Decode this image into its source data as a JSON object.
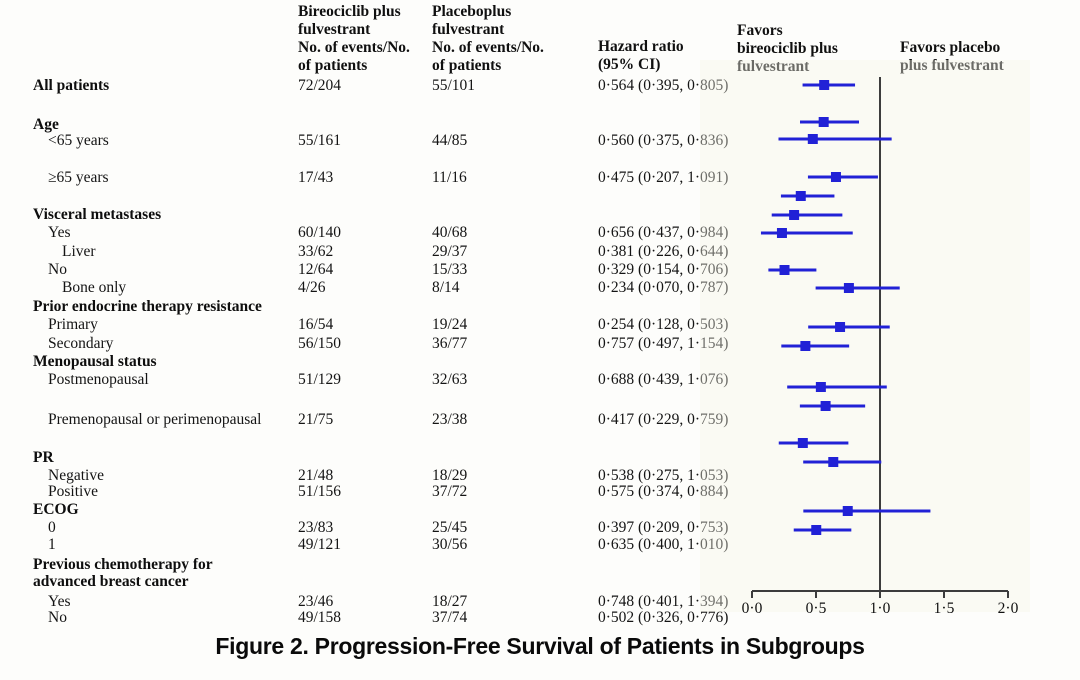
{
  "figure_caption": "Figure 2. Progression-Free Survival of Patients in Subgroups",
  "columns": {
    "bireociclib_header": "Bireociclib plus\nfulvestrant\nNo. of events/No.\nof patients",
    "placebo_header": "Placeboplus\nfulvestrant\nNo. of events/No.\nof patients",
    "hazard_header": "Hazard ratio\n(95% CI)",
    "favors_left": "Favors\nbireociclib  plus\nfulvestrant",
    "favors_right": "Favors placebo\nplus fulvestrant"
  },
  "colors": {
    "marker_blue": "#2121d6",
    "axis_gray": "#3c3c3c",
    "text_black": "#111111"
  },
  "chart_data": {
    "type": "scatter",
    "variant": "forest-plot",
    "title": "Figure 2. Progression-Free Survival of Patients in Subgroups",
    "xlabel": "Hazard ratio (95% CI)",
    "xlim": [
      0.0,
      2.0
    ],
    "x_ticks": [
      0.0,
      0.5,
      1.0,
      1.5,
      2.0
    ],
    "x_tick_labels": [
      "0·0",
      "0·5",
      "1·0",
      "1·5",
      "2·0"
    ],
    "reference_line_x": 1.0,
    "legend_left": "Favors bireociclib plus fulvestrant",
    "legend_right": "Favors placebo plus fulvestrant",
    "rows": [
      {
        "label": "All patients",
        "indent": 0,
        "bold": true,
        "events_bireociclib": "72/204",
        "events_placebo": "55/101",
        "hr_text": "0·564 (0·395, 0·805)",
        "hr": 0.564,
        "ci_low": 0.395,
        "ci_high": 0.805
      },
      {
        "label": "Age",
        "indent": 0,
        "bold": true
      },
      {
        "label": "<65 years",
        "indent": 1,
        "events_bireociclib": "55/161",
        "events_placebo": "44/85",
        "hr_text": "0·560 (0·375, 0·836)",
        "hr": 0.56,
        "ci_low": 0.375,
        "ci_high": 0.836
      },
      {
        "label": "≥65 years",
        "indent": 1,
        "events_bireociclib": "17/43",
        "events_placebo": "11/16",
        "hr_text": "0·475 (0·207, 1·091)",
        "hr": 0.475,
        "ci_low": 0.207,
        "ci_high": 1.091
      },
      {
        "label": "Visceral metastases",
        "indent": 0,
        "bold": true
      },
      {
        "label": "Yes",
        "indent": 1,
        "events_bireociclib": "60/140",
        "events_placebo": "40/68",
        "hr_text": "0·656 (0·437, 0·984)",
        "hr": 0.656,
        "ci_low": 0.437,
        "ci_high": 0.984
      },
      {
        "label": "Liver",
        "indent": 2,
        "events_bireociclib": "33/62",
        "events_placebo": "29/37",
        "hr_text": "0·381 (0·226, 0·644)",
        "hr": 0.381,
        "ci_low": 0.226,
        "ci_high": 0.644
      },
      {
        "label": "No",
        "indent": 1,
        "events_bireociclib": "12/64",
        "events_placebo": "15/33",
        "hr_text": "0·329 (0·154, 0·706)",
        "hr": 0.329,
        "ci_low": 0.154,
        "ci_high": 0.706
      },
      {
        "label": "Bone only",
        "indent": 2,
        "events_bireociclib": "4/26",
        "events_placebo": "8/14",
        "hr_text": "0·234 (0·070, 0·787)",
        "hr": 0.234,
        "ci_low": 0.07,
        "ci_high": 0.787
      },
      {
        "label": "Prior endocrine therapy resistance",
        "indent": 0,
        "bold": true
      },
      {
        "label": "Primary",
        "indent": 1,
        "events_bireociclib": "16/54",
        "events_placebo": "19/24",
        "hr_text": "0·254 (0·128, 0·503)",
        "hr": 0.254,
        "ci_low": 0.128,
        "ci_high": 0.503
      },
      {
        "label": "Secondary",
        "indent": 1,
        "events_bireociclib": "56/150",
        "events_placebo": "36/77",
        "hr_text": "0·757 (0·497, 1·154)",
        "hr": 0.757,
        "ci_low": 0.497,
        "ci_high": 1.154
      },
      {
        "label": "Menopausal status",
        "indent": 0,
        "bold": true
      },
      {
        "label": "Postmenopausal",
        "indent": 1,
        "events_bireociclib": "51/129",
        "events_placebo": "32/63",
        "hr_text": "0·688 (0·439, 1·076)",
        "hr": 0.688,
        "ci_low": 0.439,
        "ci_high": 1.076
      },
      {
        "label": "Premenopausal or perimenopausal",
        "indent": 1,
        "events_bireociclib": "21/75",
        "events_placebo": "23/38",
        "hr_text": "0·417 (0·229, 0·759)",
        "hr": 0.417,
        "ci_low": 0.229,
        "ci_high": 0.759
      },
      {
        "label": "PR",
        "indent": 0,
        "bold": true
      },
      {
        "label": "Negative",
        "indent": 1,
        "events_bireociclib": "21/48",
        "events_placebo": "18/29",
        "hr_text": "0·538 (0·275, 1·053)",
        "hr": 0.538,
        "ci_low": 0.275,
        "ci_high": 1.053
      },
      {
        "label": "Positive",
        "indent": 1,
        "events_bireociclib": "51/156",
        "events_placebo": "37/72",
        "hr_text": "0·575 (0·374, 0·884)",
        "hr": 0.575,
        "ci_low": 0.374,
        "ci_high": 0.884
      },
      {
        "label": "ECOG",
        "indent": 0,
        "bold": true
      },
      {
        "label": "0",
        "indent": 1,
        "events_bireociclib": "23/83",
        "events_placebo": "25/45",
        "hr_text": "0·397 (0·209, 0·753)",
        "hr": 0.397,
        "ci_low": 0.209,
        "ci_high": 0.753
      },
      {
        "label": "1",
        "indent": 1,
        "events_bireociclib": "49/121",
        "events_placebo": "30/56",
        "hr_text": "0·635 (0·400, 1·010)",
        "hr": 0.635,
        "ci_low": 0.4,
        "ci_high": 1.01
      },
      {
        "label": "Previous chemotherapy for",
        "indent": 0,
        "bold": true
      },
      {
        "label": "advanced breast cancer",
        "indent": 0,
        "bold": true
      },
      {
        "label": "Yes",
        "indent": 1,
        "events_bireociclib": "23/46",
        "events_placebo": "18/27",
        "hr_text": "0·748 (0·401, 1·394)",
        "hr": 0.748,
        "ci_low": 0.401,
        "ci_high": 1.394
      },
      {
        "label": "No",
        "indent": 1,
        "events_bireociclib": "49/158",
        "events_placebo": "37/74",
        "hr_text": "0·502 (0·326, 0·776)",
        "hr": 0.502,
        "ci_low": 0.326,
        "ci_high": 0.776
      }
    ]
  }
}
